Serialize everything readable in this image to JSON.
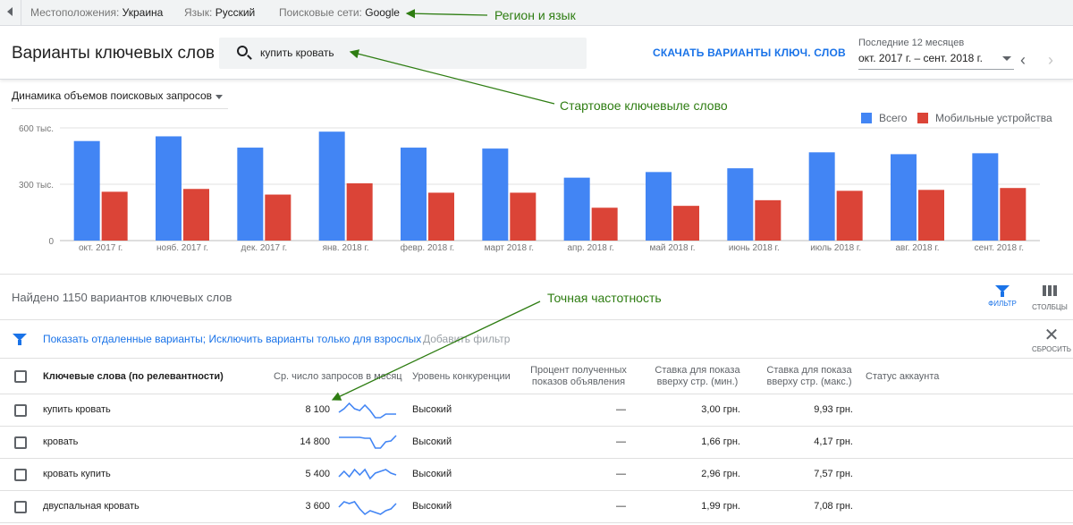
{
  "topbar": {
    "location_label": "Местоположения:",
    "location_value": "Украина",
    "language_label": "Язык:",
    "language_value": "Русский",
    "network_label": "Поисковые сети:",
    "network_value": "Google"
  },
  "annotations": {
    "region": "Регион и язык",
    "seed": "Стартовое ключевыле слово",
    "exact": "Точная частотность"
  },
  "header": {
    "title": "Варианты ключевых слов",
    "search_value": "купить кровать",
    "download": "СКАЧАТЬ ВАРИАНТЫ КЛЮЧ. СЛОВ",
    "period_label": "Последние 12 месяцев",
    "period_value": "окт. 2017 г. – сент. 2018 г.",
    "prev_arrow": "‹",
    "next_arrow": "›"
  },
  "chart_data": {
    "type": "bar",
    "selector": "Динамика объемов поисковых запросов",
    "categories": [
      "окт. 2017 г.",
      "нояб. 2017 г.",
      "дек. 2017 г.",
      "янв. 2018 г.",
      "февр. 2018 г.",
      "март 2018 г.",
      "апр. 2018 г.",
      "май 2018 г.",
      "июнь 2018 г.",
      "июль 2018 г.",
      "авг. 2018 г.",
      "сент. 2018 г."
    ],
    "series": [
      {
        "name": "Всего",
        "color": "#4285f4",
        "values": [
          530000,
          555000,
          495000,
          580000,
          495000,
          490000,
          335000,
          365000,
          385000,
          470000,
          460000,
          465000
        ]
      },
      {
        "name": "Мобильные устройства",
        "color": "#db4437",
        "values": [
          260000,
          275000,
          245000,
          305000,
          255000,
          255000,
          175000,
          185000,
          215000,
          265000,
          270000,
          280000
        ]
      }
    ],
    "yticks": [
      {
        "value": 0,
        "label": "0"
      },
      {
        "value": 300000,
        "label": "300 тыс."
      },
      {
        "value": 600000,
        "label": "600 тыс."
      }
    ],
    "ylim": [
      0,
      600000
    ],
    "grid": true,
    "legend": "top-right"
  },
  "results": {
    "found": "Найдено 1150 вариантов ключевых слов",
    "filter_tool": "ФИЛЬТР",
    "columns_tool": "СТОЛБЦЫ",
    "filter_text": "Показать отдаленные варианты; Исключить варианты только для взрослых",
    "add_filter": "Добавить фильтр",
    "reset": "СБРОСИТЬ"
  },
  "table": {
    "headers": {
      "keyword": "Ключевые слова (по релевантности)",
      "avg": "Ср. число запросов в месяц",
      "competition": "Уровень конкуренции",
      "impr_1": "Процент полученных",
      "impr_2": "показов объявления",
      "bid_min_1": "Ставка для показа",
      "bid_min_2": "вверху стр. (мин.)",
      "bid_max_1": "Ставка для показа",
      "bid_max_2": "вверху стр. (макс.)",
      "status": "Статус аккаунта"
    },
    "rows": [
      {
        "keyword": "купить кровать",
        "avg": "8 100",
        "trend": [
          0.4,
          0.6,
          0.9,
          0.6,
          0.5,
          0.8,
          0.5,
          0.1,
          0.1,
          0.3,
          0.3,
          0.3
        ],
        "competition": "Высокий",
        "impr": "—",
        "bid_min": "3,00 грн.",
        "bid_max": "9,93 грн."
      },
      {
        "keyword": "кровать",
        "avg": "14 800",
        "trend": [
          0.8,
          0.8,
          0.8,
          0.8,
          0.8,
          0.75,
          0.75,
          0.2,
          0.2,
          0.55,
          0.6,
          0.9
        ],
        "competition": "Высокий",
        "impr": "—",
        "bid_min": "1,66 грн.",
        "bid_max": "4,17 грн."
      },
      {
        "keyword": "кровать купить",
        "avg": "5 400",
        "trend": [
          0.4,
          0.7,
          0.4,
          0.8,
          0.5,
          0.8,
          0.3,
          0.6,
          0.7,
          0.8,
          0.6,
          0.5
        ],
        "competition": "Высокий",
        "impr": "—",
        "bid_min": "2,96 грн.",
        "bid_max": "7,57 грн."
      },
      {
        "keyword": "двуспальная кровать",
        "avg": "3 600",
        "trend": [
          0.5,
          0.8,
          0.7,
          0.8,
          0.4,
          0.1,
          0.3,
          0.2,
          0.1,
          0.3,
          0.4,
          0.7
        ],
        "competition": "Высокий",
        "impr": "—",
        "bid_min": "1,99 грн.",
        "bid_max": "7,08 грн."
      }
    ]
  }
}
